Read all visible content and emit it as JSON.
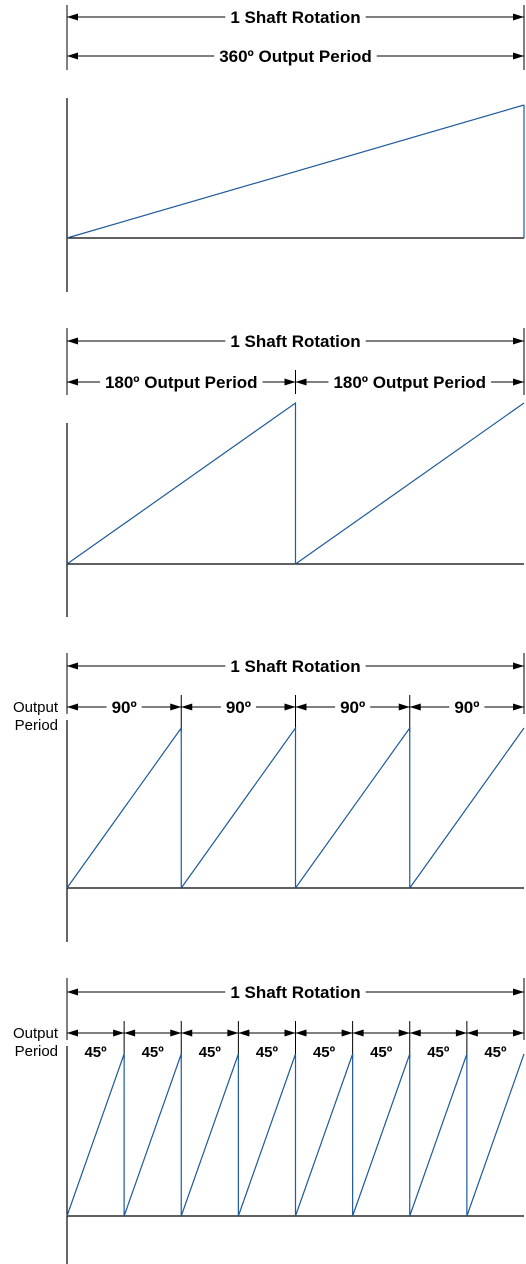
{
  "panels": [
    {
      "rotation_label": "1 Shaft Rotation",
      "cycles": 1,
      "period_labels": [
        "360º Output Period"
      ],
      "side_label": ""
    },
    {
      "rotation_label": "1 Shaft Rotation",
      "cycles": 2,
      "period_labels": [
        "180º Output Period",
        "180º Output Period"
      ],
      "side_label": ""
    },
    {
      "rotation_label": "1 Shaft Rotation",
      "cycles": 4,
      "period_labels": [
        "90º",
        "90º",
        "90º",
        "90º"
      ],
      "side_label": "Output\nPeriod"
    },
    {
      "rotation_label": "1 Shaft Rotation",
      "cycles": 8,
      "period_labels": [
        "45º",
        "45º",
        "45º",
        "45º",
        "45º",
        "45º",
        "45º",
        "45º"
      ],
      "side_label": "Output\nPeriod"
    }
  ],
  "colors": {
    "waveform": "#1f5a9a",
    "lines": "#000000"
  }
}
